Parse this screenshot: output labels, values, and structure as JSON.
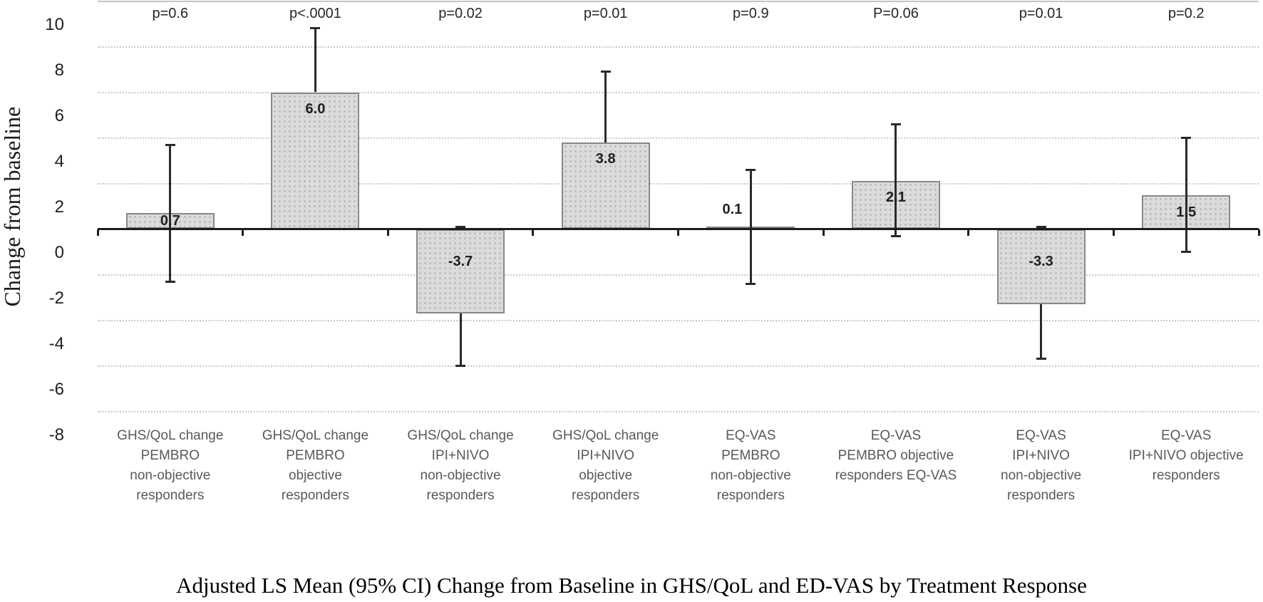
{
  "chart_data": {
    "type": "bar",
    "caption": "Adjusted LS Mean (95% CI) Change from Baseline in GHS/QoL and ED-VAS by Treatment Response",
    "ylabel": "Change from baseline",
    "ylim": [
      -8,
      10
    ],
    "yticks": [
      10,
      8,
      6,
      4,
      2,
      0,
      -2,
      -4,
      -6,
      -8
    ],
    "grid": "horizontal-dotted",
    "legend": "none",
    "bar_fill": "#dbdbdb",
    "bar_pattern_dot": "#a8a8a8",
    "bar_border": "#888888",
    "axis_color": "#1c1c1c",
    "gridline_color": "#c9c9c9",
    "bars": [
      {
        "category_lines": [
          "GHS/QoL change",
          "PEMBRO",
          "non-objective",
          "responders"
        ],
        "p_label": "p=0.6",
        "value": 0.7,
        "value_label": "0.7",
        "ci_low": -2.3,
        "ci_high": 3.7
      },
      {
        "category_lines": [
          "GHS/QoL change",
          "PEMBRO",
          "objective",
          "responders"
        ],
        "p_label": "p<.0001",
        "value": 6.0,
        "value_label": "6.0",
        "ci_low": null,
        "ci_high": 8.8
      },
      {
        "category_lines": [
          "GHS/QoL change",
          "IPI+NIVO",
          "non-objective",
          "responders"
        ],
        "p_label": "p=0.02",
        "value": -3.7,
        "value_label": "-3.7",
        "ci_low": -6.0,
        "ci_high": 0.1
      },
      {
        "category_lines": [
          "GHS/QoL change",
          "IPI+NIVO",
          "objective",
          "responders"
        ],
        "p_label": "p=0.01",
        "value": 3.8,
        "value_label": "3.8",
        "ci_low": null,
        "ci_high": 6.9
      },
      {
        "category_lines": [
          "EQ-VAS",
          "PEMBRO",
          "non-objective",
          "responders"
        ],
        "p_label": "p=0.9",
        "value": 0.1,
        "value_label": "0.1",
        "ci_low": -2.4,
        "ci_high": 2.6
      },
      {
        "category_lines": [
          "EQ-VAS",
          "PEMBRO objective",
          "responders EQ-VAS"
        ],
        "p_label": "P=0.06",
        "value": 2.1,
        "value_label": "2.1",
        "ci_low": -0.3,
        "ci_high": 4.6
      },
      {
        "category_lines": [
          "EQ-VAS",
          "IPI+NIVO",
          "non-objective",
          "responders"
        ],
        "p_label": "p=0.01",
        "value": -3.3,
        "value_label": "-3.3",
        "ci_low": -5.7,
        "ci_high": 0.1
      },
      {
        "category_lines": [
          "EQ-VAS",
          "IPI+NIVO objective",
          "responders"
        ],
        "p_label": "p=0.2",
        "value": 1.5,
        "value_label": "1.5",
        "ci_low": -1.0,
        "ci_high": 4.0
      }
    ]
  }
}
